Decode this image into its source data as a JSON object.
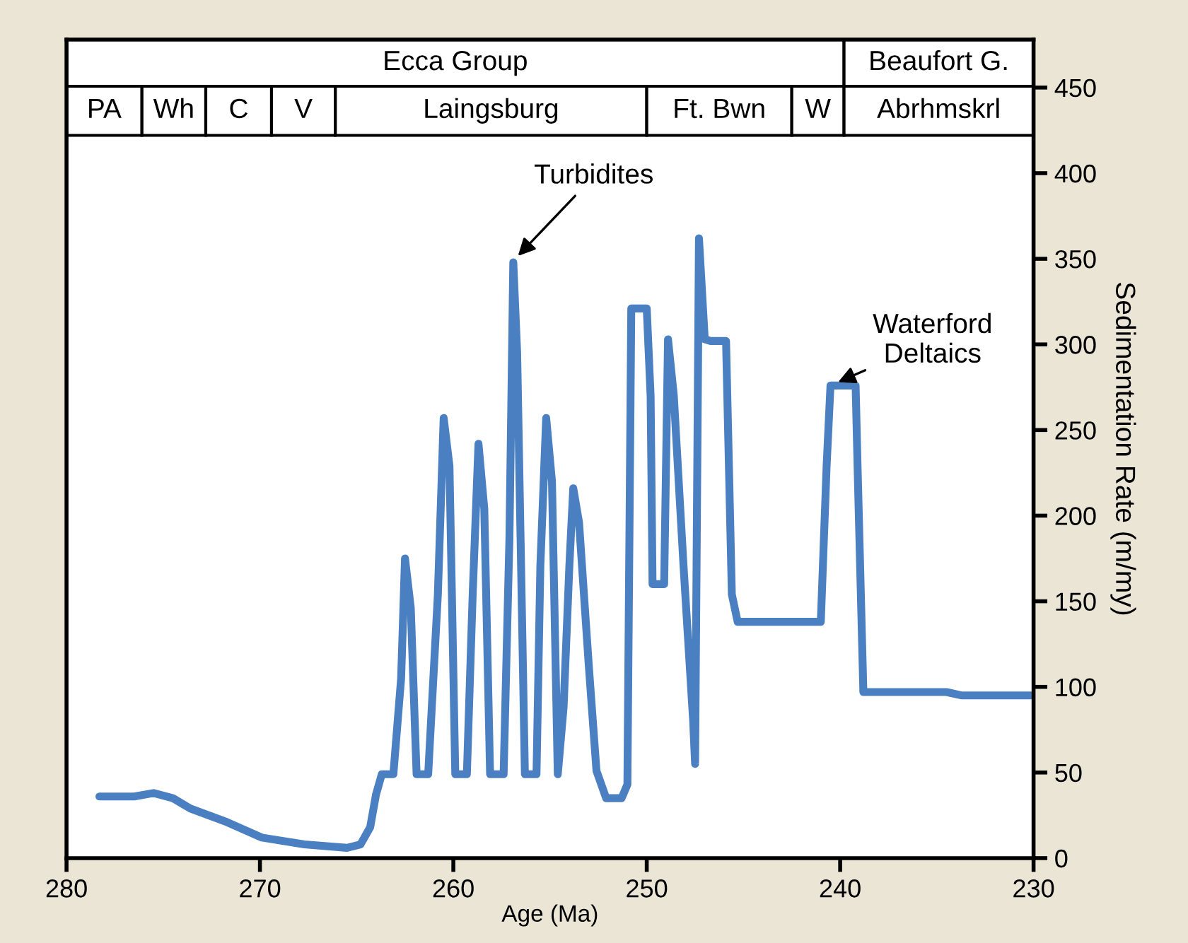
{
  "chart_data": {
    "type": "line",
    "xlabel": "Age (Ma)",
    "ylabel": "Sedimentation Rate (m/my)",
    "xlim": [
      280,
      230
    ],
    "xticks": [
      280,
      270,
      260,
      250,
      240,
      230
    ],
    "ylim": [
      0,
      478
    ],
    "yticks": [
      0,
      50,
      100,
      150,
      200,
      250,
      300,
      350,
      400,
      450
    ],
    "grid": false,
    "legend": false,
    "marker": "none",
    "line_style": "solid",
    "series": [
      {
        "color": "#4a7fc1",
        "x": [
          278.3,
          276.5,
          275.5,
          274.5,
          273.6,
          271.7,
          269.9,
          267.7,
          265.5,
          264.8,
          264.3,
          264.0,
          263.7,
          263.1,
          262.7,
          262.5,
          262.2,
          261.9,
          261.3,
          260.8,
          260.5,
          260.2,
          259.9,
          259.3,
          259.0,
          258.7,
          258.4,
          258.1,
          257.4,
          257.1,
          256.9,
          256.7,
          256.3,
          255.7,
          255.5,
          255.2,
          254.9,
          254.6,
          254.3,
          254.0,
          253.8,
          253.5,
          253.0,
          252.6,
          252.1,
          251.3,
          251.0,
          250.8,
          250.0,
          249.8,
          249.7,
          249.1,
          248.9,
          248.6,
          248.1,
          247.6,
          247.5,
          247.3,
          247.0,
          246.7,
          245.9,
          245.8,
          245.6,
          245.3,
          241.0,
          240.7,
          240.5,
          239.2,
          239.1,
          238.8,
          234.5,
          233.7,
          230.0
        ],
        "values": [
          36,
          36,
          38,
          35,
          29,
          21,
          12,
          8,
          6,
          8,
          18,
          37,
          49,
          49,
          105,
          175,
          146,
          49,
          49,
          154,
          257,
          229,
          49,
          49,
          154,
          242,
          204,
          49,
          49,
          187,
          348,
          295,
          49,
          49,
          171,
          257,
          220,
          49,
          88,
          171,
          216,
          196,
          113,
          51,
          35,
          35,
          43,
          321,
          321,
          270,
          160,
          160,
          303,
          270,
          171,
          80,
          55,
          362,
          303,
          302,
          302,
          253,
          154,
          138,
          138,
          229,
          276,
          276,
          229,
          97,
          97,
          95,
          95
        ]
      }
    ],
    "bands": [
      {
        "axis": "x",
        "from": 280,
        "to": 239.8,
        "label": "Ecca Group"
      },
      {
        "axis": "x",
        "from": 239.8,
        "to": 230,
        "label": "Beaufort G."
      },
      {
        "axis": "x",
        "from": 280,
        "to": 276.1,
        "label": "PA"
      },
      {
        "axis": "x",
        "from": 276.1,
        "to": 272.8,
        "label": "Wh"
      },
      {
        "axis": "x",
        "from": 272.8,
        "to": 269.4,
        "label": "C"
      },
      {
        "axis": "x",
        "from": 269.4,
        "to": 266.1,
        "label": "V"
      },
      {
        "axis": "x",
        "from": 266.1,
        "to": 250.0,
        "label": "Laingsburg"
      },
      {
        "axis": "x",
        "from": 250.0,
        "to": 242.5,
        "label": "Ft. Bwn"
      },
      {
        "axis": "x",
        "from": 242.5,
        "to": 239.8,
        "label": "W"
      },
      {
        "axis": "x",
        "from": 239.8,
        "to": 230,
        "label": "Abrhmskrl"
      }
    ],
    "annotations": [
      {
        "text": "Turbidites",
        "x": 256.8,
        "y": 350
      },
      {
        "text": "Waterford\nDeltaics",
        "x": 240.3,
        "y": 277
      }
    ]
  }
}
